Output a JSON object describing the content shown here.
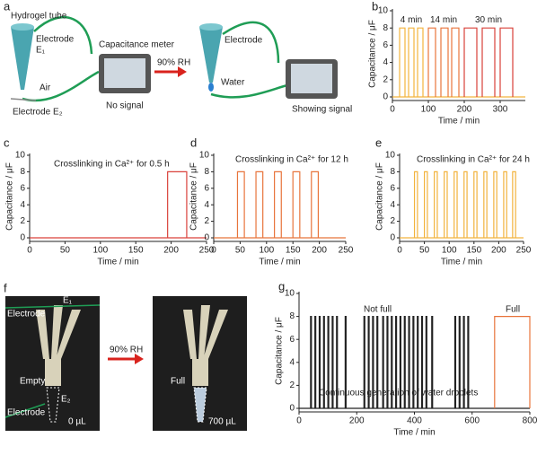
{
  "panels": {
    "a": {
      "label": "a",
      "hydrogel": "Hydrogel tube",
      "electrode1": "Electrode",
      "e1": "E₁",
      "air": "Air",
      "electrode2": "Electrode E₂",
      "meter": "Capacitance meter",
      "nosignal": "No signal",
      "rh": "90% RH",
      "electrode3": "Electrode",
      "water": "Water",
      "showing": "Showing signal"
    },
    "f": {
      "label": "f",
      "electrode1": "Electrode",
      "e1": "E₁",
      "empty": "Empty",
      "electrode2": "Electrode",
      "e2": "E₂",
      "vol0": "0 µL",
      "rh": "90% RH",
      "full": "Full",
      "vol1": "700 µL"
    }
  },
  "chart_data": [
    {
      "panel": "b",
      "type": "pulse",
      "xlabel": "Time / min",
      "ylabel": "Capacitance / μF",
      "xlim": [
        0,
        370
      ],
      "ylim": [
        0,
        10
      ],
      "xticks": [
        0,
        100,
        200,
        300
      ],
      "yticks": [
        0,
        2,
        4,
        6,
        8,
        10
      ],
      "series": [
        {
          "name": "4 min",
          "color": "#f2b33d",
          "level": 8,
          "pulses": [
            [
              20,
              35
            ],
            [
              45,
              60
            ],
            [
              70,
              85
            ]
          ]
        },
        {
          "name": "14 min",
          "color": "#e8743b",
          "level": 8,
          "pulses": [
            [
              100,
              120
            ],
            [
              135,
              155
            ],
            [
              165,
              185
            ]
          ]
        },
        {
          "name": "30 min",
          "color": "#d9413a",
          "level": 8,
          "pulses": [
            [
              200,
              235
            ],
            [
              250,
              285
            ],
            [
              300,
              335
            ]
          ]
        }
      ]
    },
    {
      "panel": "c",
      "type": "pulse",
      "xlabel": "Time / min",
      "ylabel": "Capacitance / μF",
      "annotation": "Crosslinking in Ca²⁺ for 0.5 h",
      "xlim": [
        0,
        250
      ],
      "ylim": [
        0,
        10
      ],
      "xticks": [
        0,
        50,
        100,
        150,
        200,
        250
      ],
      "yticks": [
        0,
        2,
        4,
        6,
        8,
        10
      ],
      "series": [
        {
          "color": "#d9413a",
          "level": 8,
          "pulses": [
            [
              195,
              222
            ]
          ]
        }
      ]
    },
    {
      "panel": "d",
      "type": "pulse",
      "xlabel": "Time / min",
      "ylabel": "Capacitance / μF",
      "annotation": "Crosslinking in Ca²⁺ for 12 h",
      "xlim": [
        0,
        250
      ],
      "ylim": [
        0,
        10
      ],
      "xticks": [
        0,
        50,
        100,
        150,
        200,
        250
      ],
      "yticks": [
        0,
        2,
        4,
        6,
        8,
        10
      ],
      "series": [
        {
          "color": "#e8743b",
          "level": 8,
          "pulses": [
            [
              45,
              58
            ],
            [
              80,
              93
            ],
            [
              115,
              128
            ],
            [
              150,
              163
            ],
            [
              185,
              198
            ]
          ]
        }
      ]
    },
    {
      "panel": "e",
      "type": "pulse",
      "xlabel": "Time / min",
      "ylabel": "Capacitance / μF",
      "annotation": "Crosslinking in Ca²⁺ for 24 h",
      "xlim": [
        0,
        250
      ],
      "ylim": [
        0,
        10
      ],
      "xticks": [
        0,
        50,
        100,
        150,
        200,
        250
      ],
      "yticks": [
        0,
        2,
        4,
        6,
        8,
        10
      ],
      "series": [
        {
          "color": "#f2b33d",
          "level": 8,
          "pulses": [
            [
              30,
              36
            ],
            [
              50,
              56
            ],
            [
              70,
              76
            ],
            [
              90,
              96
            ],
            [
              110,
              116
            ],
            [
              130,
              136
            ],
            [
              150,
              156
            ],
            [
              170,
              176
            ],
            [
              190,
              196
            ],
            [
              210,
              216
            ],
            [
              228,
              234
            ]
          ]
        }
      ]
    },
    {
      "panel": "g",
      "type": "pulse",
      "xlabel": "Time / min",
      "ylabel": "Capacitance / μF",
      "annotations": [
        "Not full",
        "Full",
        "Continuous generation of water droplets"
      ],
      "xlim": [
        0,
        800
      ],
      "ylim": [
        0,
        10
      ],
      "xticks": [
        0,
        200,
        400,
        600,
        800
      ],
      "yticks": [
        0,
        2,
        4,
        6,
        8,
        10
      ],
      "series": [
        {
          "color": "#222222",
          "level": 8,
          "pulses": [
            [
              40,
              43
            ],
            [
              55,
              58
            ],
            [
              70,
              73
            ],
            [
              85,
              88
            ],
            [
              100,
              103
            ],
            [
              115,
              118
            ],
            [
              130,
              133
            ],
            [
              160,
              163
            ],
            [
              225,
              228
            ],
            [
              240,
              243
            ],
            [
              255,
              258
            ],
            [
              270,
              273
            ],
            [
              290,
              293
            ],
            [
              305,
              308
            ],
            [
              320,
              323
            ],
            [
              335,
              338
            ],
            [
              350,
              353
            ],
            [
              365,
              368
            ],
            [
              380,
              383
            ],
            [
              395,
              398
            ],
            [
              410,
              413
            ],
            [
              425,
              428
            ],
            [
              440,
              443
            ],
            [
              460,
              463
            ],
            [
              540,
              543
            ],
            [
              555,
              558
            ],
            [
              570,
              573
            ],
            [
              585,
              588
            ]
          ]
        },
        {
          "color": "#e8743b",
          "level": 8,
          "pulses": [
            [
              678,
              800
            ]
          ]
        }
      ]
    }
  ]
}
